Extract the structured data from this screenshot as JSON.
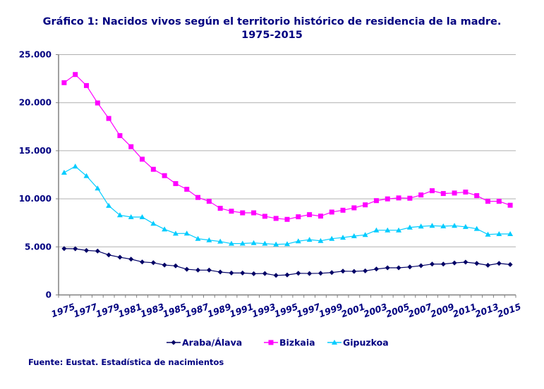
{
  "chart_data": {
    "type": "line",
    "title": "Gráfico 1: Nacidos vivos según el territorio histórico de residencia de la madre.",
    "subtitle": "1975-2015",
    "xlabel": "",
    "ylabel": "",
    "x": [
      1975,
      1976,
      1977,
      1978,
      1979,
      1980,
      1981,
      1982,
      1983,
      1984,
      1985,
      1986,
      1987,
      1988,
      1989,
      1990,
      1991,
      1992,
      1993,
      1994,
      1995,
      1996,
      1997,
      1998,
      1999,
      2000,
      2001,
      2002,
      2003,
      2004,
      2005,
      2006,
      2007,
      2008,
      2009,
      2010,
      2011,
      2012,
      2013,
      2014,
      2015
    ],
    "x_tick_labels": [
      "1975",
      "1977",
      "1979",
      "1981",
      "1983",
      "1985",
      "1987",
      "1989",
      "1991",
      "1993",
      "1995",
      "1997",
      "1999",
      "2001",
      "2003",
      "2005",
      "2007",
      "2009",
      "2011",
      "2013",
      "2015"
    ],
    "y_tick_labels": [
      "0",
      "5.000",
      "10.000",
      "15.000",
      "20.000",
      "25.000"
    ],
    "ylim": [
      0,
      25000
    ],
    "grid": "horizontal",
    "legend_position": "bottom",
    "series": [
      {
        "name": "Araba/Álava",
        "color": "#000066",
        "marker": "diamond",
        "values": [
          4820,
          4800,
          4630,
          4560,
          4160,
          3920,
          3720,
          3430,
          3350,
          3110,
          3020,
          2670,
          2580,
          2580,
          2380,
          2280,
          2280,
          2210,
          2230,
          2030,
          2080,
          2250,
          2230,
          2250,
          2330,
          2470,
          2450,
          2500,
          2690,
          2820,
          2820,
          2910,
          3040,
          3210,
          3210,
          3330,
          3410,
          3280,
          3090,
          3280,
          3160
        ]
      },
      {
        "name": "Bizkaia",
        "color": "#FF00FF",
        "marker": "square",
        "values": [
          22080,
          22930,
          21780,
          19970,
          18360,
          16570,
          15420,
          14120,
          13070,
          12410,
          11580,
          10990,
          10140,
          9740,
          9010,
          8710,
          8540,
          8540,
          8180,
          7960,
          7860,
          8130,
          8350,
          8200,
          8620,
          8810,
          9060,
          9370,
          9810,
          9990,
          10090,
          10060,
          10400,
          10840,
          10550,
          10600,
          10700,
          10330,
          9740,
          9740,
          9330
        ]
      },
      {
        "name": "Gipuzkoa",
        "color": "#00CCFF",
        "marker": "triangle",
        "values": [
          12730,
          13370,
          12380,
          11090,
          9280,
          8300,
          8100,
          8100,
          7420,
          6830,
          6390,
          6400,
          5850,
          5700,
          5560,
          5340,
          5350,
          5410,
          5340,
          5260,
          5300,
          5590,
          5750,
          5630,
          5850,
          5970,
          6120,
          6250,
          6730,
          6730,
          6730,
          7020,
          7130,
          7200,
          7150,
          7200,
          7080,
          6880,
          6290,
          6340,
          6340
        ]
      }
    ]
  },
  "source": "Fuente: Eustat. Estadística de nacimientos",
  "colors": {
    "text": "#000080",
    "grid": "#B0B0B0",
    "axis": "#808080"
  }
}
